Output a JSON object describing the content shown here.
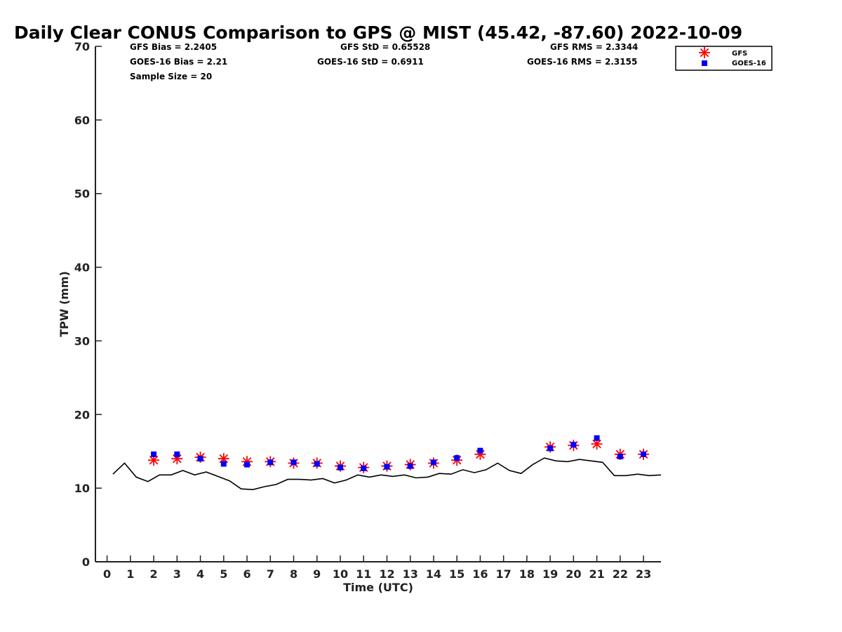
{
  "chart_data": {
    "type": "scatter",
    "title": "Daily Clear CONUS Comparison to GPS @ MIST (45.42, -87.60) 2022-10-09",
    "xlabel": "Time (UTC)",
    "ylabel": "TPW (mm)",
    "xlim": [
      -0.5,
      23.75
    ],
    "ylim": [
      0,
      70
    ],
    "x_ticks": [
      "0",
      "1",
      "2",
      "3",
      "4",
      "5",
      "6",
      "7",
      "8",
      "9",
      "10",
      "11",
      "12",
      "13",
      "14",
      "15",
      "16",
      "17",
      "18",
      "19",
      "20",
      "21",
      "22",
      "23"
    ],
    "y_ticks": [
      "0",
      "10",
      "20",
      "30",
      "40",
      "50",
      "60",
      "70"
    ],
    "grid": false,
    "legend_position": "top-right",
    "stats": {
      "gfs_bias": "GFS Bias = 2.2405",
      "goes_bias": "GOES-16 Bias = 2.21",
      "sample_size": "Sample Size = 20",
      "gfs_std": "GFS StD = 0.65528",
      "goes_std": "GOES-16 StD = 0.6911",
      "gfs_rms": "GFS RMS = 2.3344",
      "goes_rms": "GOES-16 RMS = 2.3155"
    },
    "series": [
      {
        "name": "GFS",
        "marker": "asterisk",
        "color": "#ff0000",
        "x": [
          2,
          3,
          4,
          5,
          6,
          7,
          8,
          9,
          10,
          11,
          12,
          13,
          14,
          15,
          16,
          19,
          20,
          21,
          22,
          23
        ],
        "y": [
          13.8,
          14.0,
          14.2,
          14.0,
          13.6,
          13.6,
          13.4,
          13.4,
          13.0,
          12.8,
          13.0,
          13.2,
          13.4,
          13.8,
          14.6,
          15.6,
          15.8,
          16.0,
          14.6,
          14.6
        ]
      },
      {
        "name": "GOES-16",
        "marker": "square",
        "color": "#0000ff",
        "x": [
          2,
          3,
          4,
          5,
          6,
          7,
          8,
          9,
          10,
          11,
          12,
          13,
          14,
          15,
          16,
          19,
          20,
          21,
          22,
          23
        ],
        "y": [
          14.6,
          14.6,
          14.0,
          13.3,
          13.2,
          13.5,
          13.5,
          13.3,
          12.8,
          12.7,
          12.9,
          13.0,
          13.5,
          14.1,
          15.1,
          15.4,
          15.9,
          16.8,
          14.3,
          14.6
        ]
      },
      {
        "name": "",
        "marker": "line",
        "color": "#000000",
        "x": [
          0.25,
          0.75,
          1.25,
          1.75,
          2.25,
          2.75,
          3.25,
          3.75,
          4.25,
          4.75,
          5.25,
          5.75,
          6.25,
          6.75,
          7.25,
          7.75,
          8.25,
          8.75,
          9.25,
          9.75,
          10.25,
          10.75,
          11.25,
          11.75,
          12.25,
          12.75,
          13.25,
          13.75,
          14.25,
          14.75,
          15.25,
          15.75,
          16.25,
          16.75,
          17.25,
          17.75,
          18.25,
          18.75,
          19.25,
          19.75,
          20.25,
          20.75,
          21.25,
          21.75,
          22.25,
          22.75,
          23.25,
          23.75
        ],
        "y": [
          11.9,
          13.4,
          11.5,
          10.9,
          11.8,
          11.8,
          12.4,
          11.8,
          12.2,
          11.6,
          11.0,
          9.9,
          9.8,
          10.2,
          10.5,
          11.2,
          11.2,
          11.1,
          11.3,
          10.7,
          11.1,
          11.8,
          11.5,
          11.8,
          11.6,
          11.8,
          11.4,
          11.5,
          12.0,
          11.9,
          12.5,
          12.1,
          12.5,
          13.4,
          12.4,
          12.0,
          13.2,
          14.1,
          13.7,
          13.6,
          13.9,
          13.7,
          13.5,
          11.7,
          11.7,
          11.9,
          11.7,
          11.8
        ]
      }
    ]
  }
}
